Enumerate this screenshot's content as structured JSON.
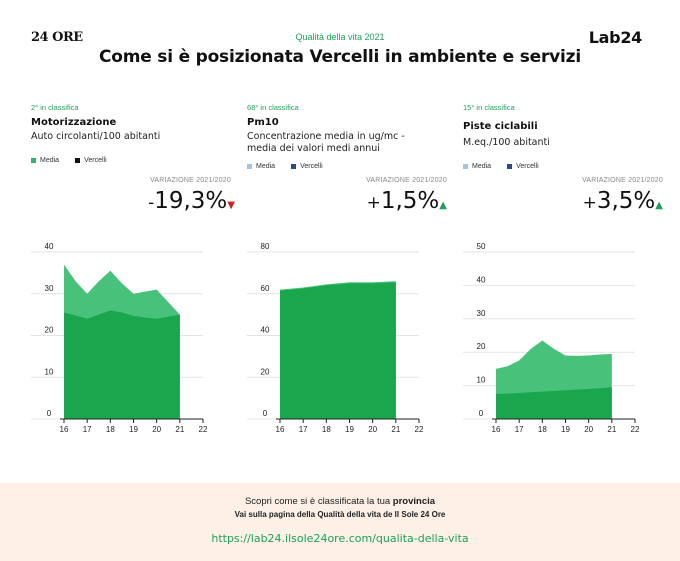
{
  "header": {
    "logo_left": "24 ORE",
    "kicker": "Qualità della vita 2021",
    "title": "Come si è posizionata Vercelli in ambiente e servizi",
    "logo_right": "Lab24"
  },
  "colors": {
    "media": "#48c17a",
    "vercelli": "#19a64c",
    "up": "#1fa05a",
    "down": "#d62020"
  },
  "panels": [
    {
      "rank": "2° in classifica",
      "name": "Motorizzazione",
      "desc": "Auto circolanti/100 abitanti",
      "legend_media": "Media",
      "legend_vercelli": "Vercelli",
      "legend_media_color": "#2bb673",
      "legend_vercelli_color": "#111111",
      "var_label": "VARIAZIONE 2021/2020",
      "var_sign": "-",
      "var_value": "19,3%",
      "trend": "down",
      "arrow": "▼"
    },
    {
      "rank": "68° in classifica",
      "name": "Pm10",
      "desc": "Concentrazione media in ug/mc - media dei valori medi annui",
      "legend_media": "Media",
      "legend_vercelli": "Vercelli",
      "legend_media_color": "#a8c4dc",
      "legend_vercelli_color": "#2a4a8a",
      "var_label": "VARIAZIONE 2021/2020",
      "var_sign": "+",
      "var_value": "1,5%",
      "trend": "up",
      "arrow": "▲"
    },
    {
      "rank": "15° in classifica",
      "name": "Piste ciclabili",
      "desc": "M.eq./100 abitanti",
      "legend_media": "Media",
      "legend_vercelli": "Vercelli",
      "legend_media_color": "#a8c4dc",
      "legend_vercelli_color": "#2a4a8a",
      "var_label": "VARIAZIONE 2021/2020",
      "var_sign": "+",
      "var_value": "3,5%",
      "trend": "up",
      "arrow": "▲"
    }
  ],
  "chart_data": [
    {
      "type": "area",
      "title": "Motorizzazione",
      "x": [
        16,
        16.5,
        17,
        17.5,
        18,
        18.5,
        19,
        19.5,
        20,
        20.5,
        21
      ],
      "xticks": [
        16,
        17,
        18,
        19,
        20,
        21,
        22
      ],
      "yticks": [
        0,
        10,
        20,
        30,
        40
      ],
      "ylim": [
        0,
        40
      ],
      "xlim": [
        16,
        22
      ],
      "series": [
        {
          "name": "Media",
          "values": [
            37,
            33,
            30,
            33,
            35.5,
            32.5,
            30,
            30.5,
            31,
            28,
            25
          ]
        },
        {
          "name": "Vercelli",
          "values": [
            25.5,
            24.8,
            24,
            25,
            26,
            25.5,
            24.7,
            24.3,
            24,
            24.5,
            25
          ]
        }
      ],
      "grid": true
    },
    {
      "type": "area",
      "title": "Pm10",
      "x": [
        16,
        17,
        18,
        19,
        20,
        21
      ],
      "xticks": [
        16,
        17,
        18,
        19,
        20,
        21,
        22
      ],
      "yticks": [
        0,
        20,
        40,
        60,
        80
      ],
      "ylim": [
        0,
        80
      ],
      "xlim": [
        16,
        22
      ],
      "series": [
        {
          "name": "Media",
          "values": [
            62,
            63,
            64.5,
            65.5,
            65.5,
            66
          ]
        },
        {
          "name": "Vercelli",
          "values": [
            61.5,
            62.5,
            64,
            65,
            65,
            65.5
          ]
        }
      ],
      "grid": true
    },
    {
      "type": "area",
      "title": "Piste ciclabili",
      "x": [
        16,
        16.5,
        17,
        17.5,
        18,
        18.5,
        19,
        19.5,
        20,
        20.5,
        21
      ],
      "xticks": [
        16,
        17,
        18,
        19,
        20,
        21,
        22
      ],
      "yticks": [
        0,
        10,
        20,
        30,
        40,
        50
      ],
      "ylim": [
        0,
        50
      ],
      "xlim": [
        16,
        22
      ],
      "series": [
        {
          "name": "Media",
          "values": [
            15,
            15.8,
            17.5,
            21,
            23.5,
            21,
            19,
            18.9,
            19,
            19.3,
            19.5
          ]
        },
        {
          "name": "Vercelli",
          "values": [
            7.5,
            7.6,
            7.8,
            8,
            8.2,
            8.4,
            8.6,
            8.8,
            9,
            9.2,
            9.5
          ]
        }
      ],
      "grid": true
    }
  ],
  "cta": {
    "line1_prefix": "Scopri come si è classificata la tua ",
    "line1_bold": "provincia",
    "line2": "Vai sulla pagina della Qualità della vita de Il Sole 24 Ore",
    "link": "https://lab24.ilsole24ore.com/qualita-della-vita"
  }
}
